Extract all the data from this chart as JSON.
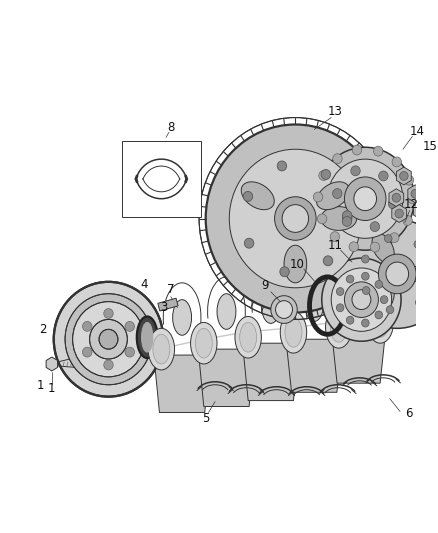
{
  "background_color": "#ffffff",
  "fig_width": 4.38,
  "fig_height": 5.33,
  "dpi": 100,
  "line_color": "#333333",
  "label_fontsize": 8.5
}
